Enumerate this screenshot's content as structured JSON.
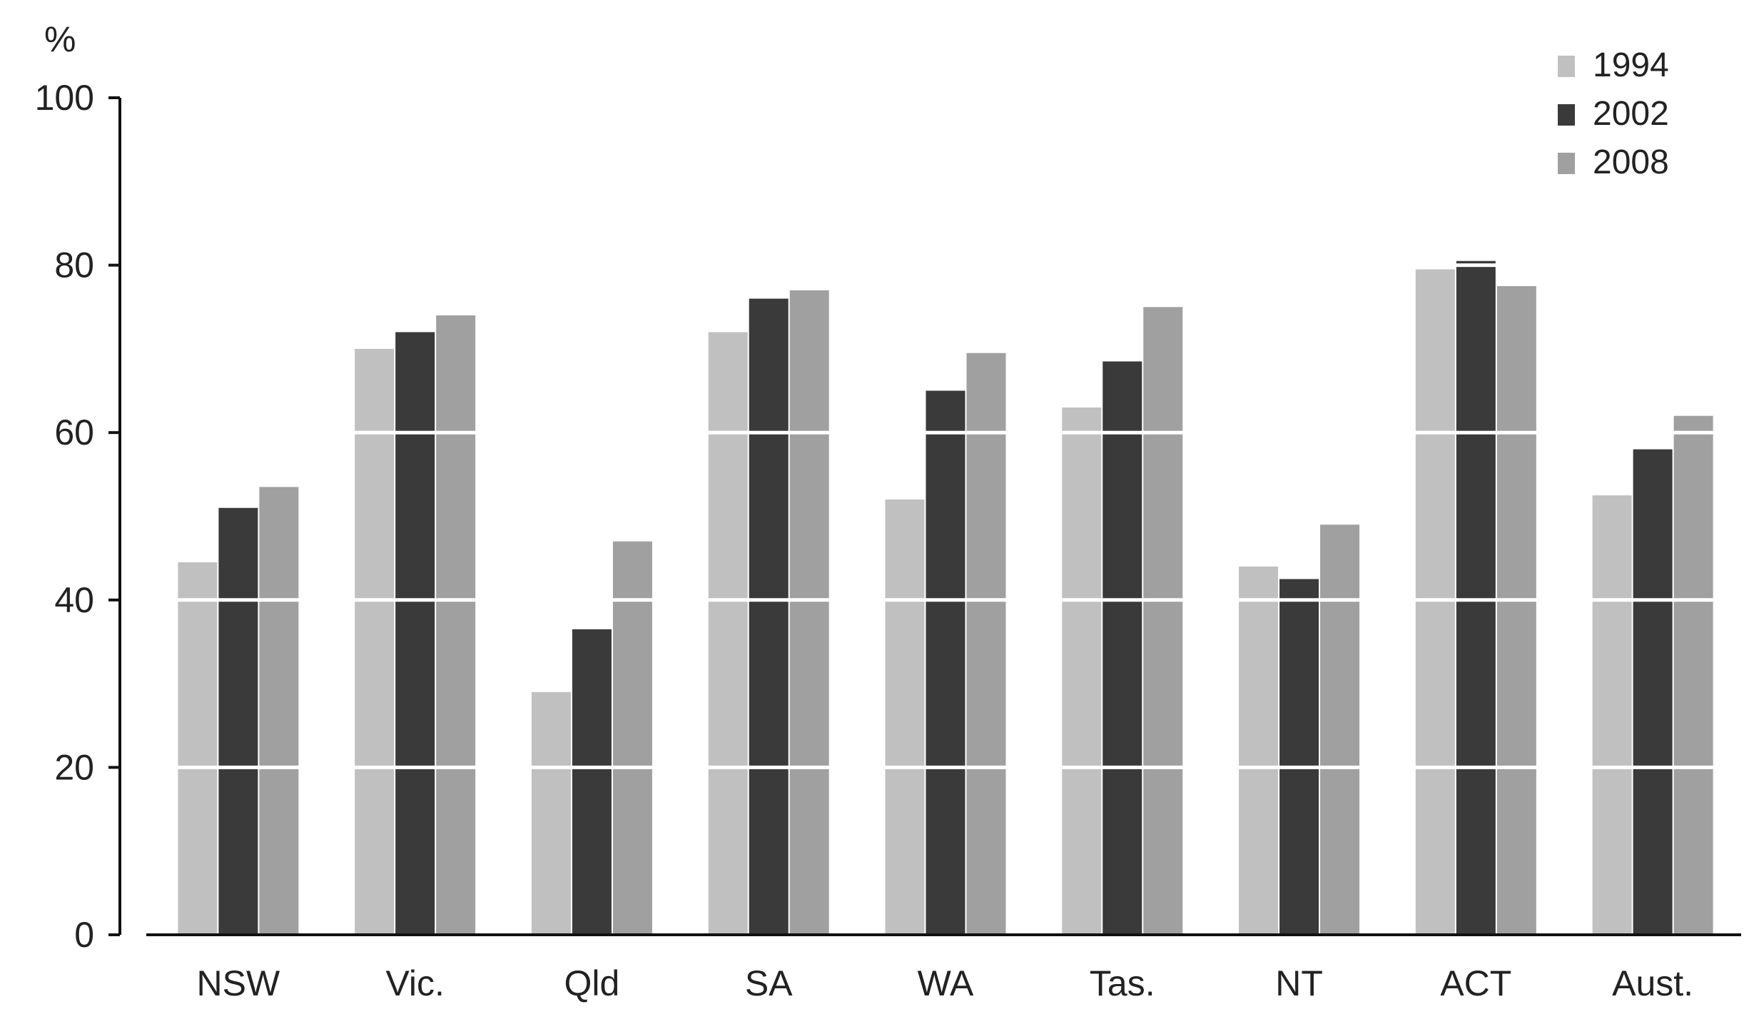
{
  "chart_data": {
    "type": "bar",
    "unit_label": "%",
    "ylim": [
      0,
      100
    ],
    "yticks": [
      0,
      20,
      40,
      60,
      80,
      100
    ],
    "ytick_labels": [
      "0",
      "20",
      "40",
      "60",
      "80",
      "100"
    ],
    "grid": "white lines drawn over bars",
    "legend_position": "top-right",
    "categories": [
      "NSW",
      "Vic.",
      "Qld",
      "SA",
      "WA",
      "Tas.",
      "NT",
      "ACT",
      "Aust."
    ],
    "series": [
      {
        "name": "1994",
        "color": "#c0c0c0",
        "values": [
          44.5,
          70,
          29,
          72,
          52,
          63,
          44,
          79.5,
          52.5
        ]
      },
      {
        "name": "2002",
        "color": "#3a3a3a",
        "values": [
          51,
          72,
          36.5,
          76,
          65,
          68.5,
          42.5,
          80.5,
          58
        ]
      },
      {
        "name": "2008",
        "color": "#a0a0a0",
        "values": [
          53.5,
          74,
          47,
          77,
          69.5,
          75,
          49,
          77.5,
          62
        ]
      }
    ]
  }
}
